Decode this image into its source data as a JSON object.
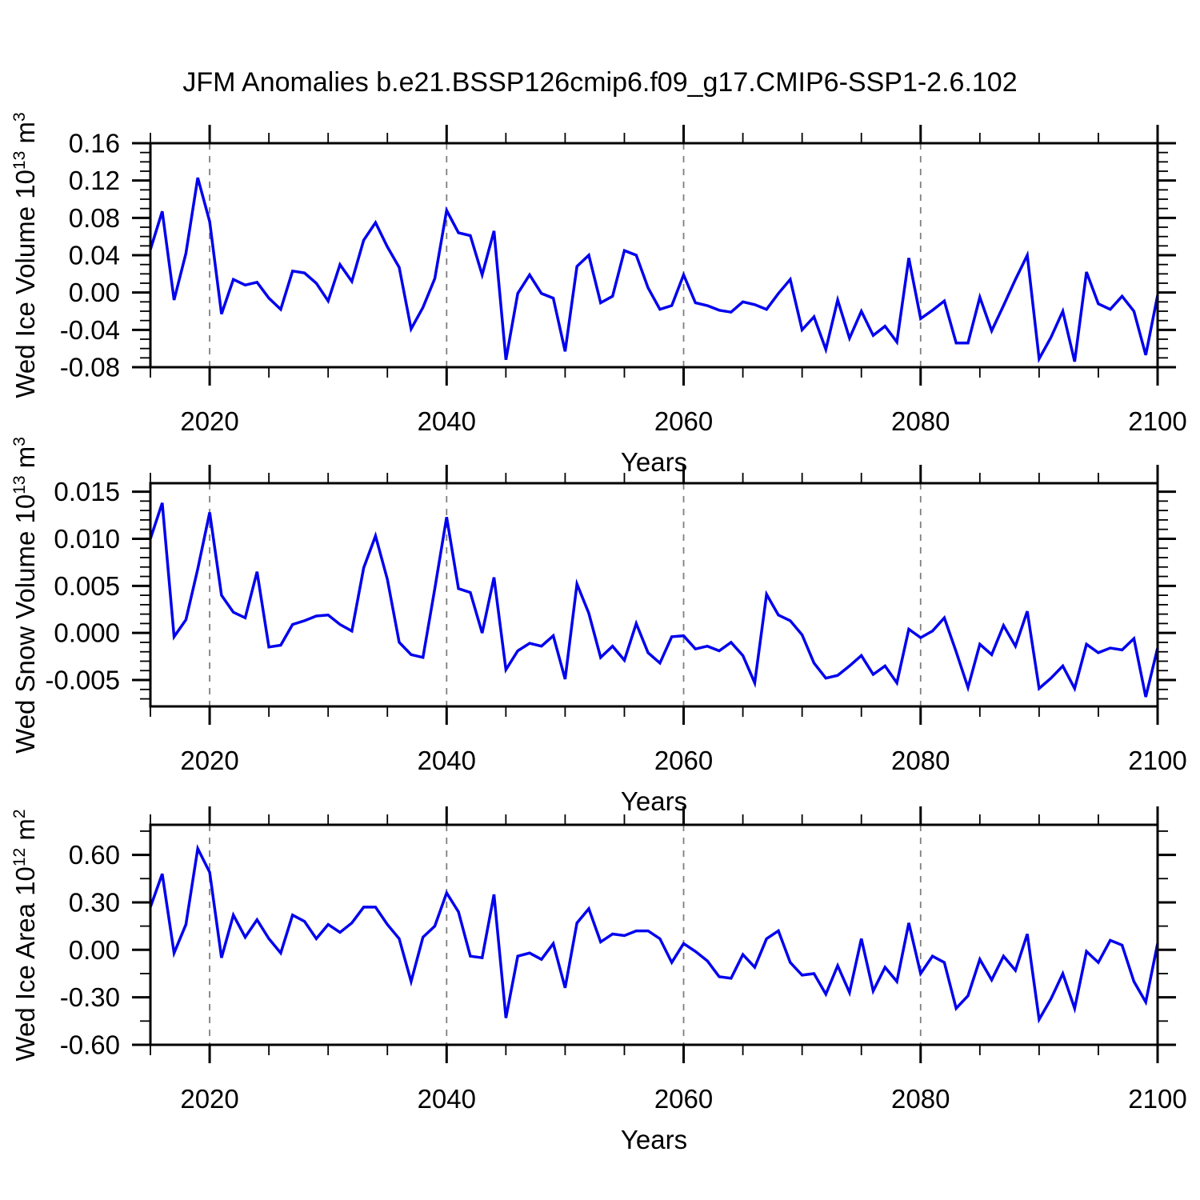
{
  "title": "JFM Anomalies b.e21.BSSP126cmip6.f09_g17.CMIP6-SSP1-2.6.102",
  "colors": {
    "line": "#0000EE",
    "grid": "#7F7F7F",
    "axis": "#000000",
    "background": "#FFFFFF"
  },
  "x_axis": {
    "label": "Years",
    "range": [
      2015,
      2100
    ],
    "tick_values": [
      2020,
      2040,
      2060,
      2080,
      2100
    ],
    "tick_labels": [
      "2020",
      "2040",
      "2060",
      "2080",
      "2100"
    ],
    "minor_step": 5,
    "grid_years": [
      2020,
      2040,
      2060,
      2080
    ]
  },
  "chart_data": [
    {
      "type": "line",
      "name": "wed-ice-volume",
      "ylabel": "Wed Ice Volume 10^{13} m^{3}",
      "xlabel": "Years",
      "ylim": [
        -0.08,
        0.16
      ],
      "ytick_values": [
        0.16,
        0.12,
        0.08,
        0.04,
        0.0,
        -0.04,
        -0.08
      ],
      "ytick_labels": [
        "0.16",
        "0.12",
        "0.08",
        "0.04",
        "0.00",
        "-0.04",
        "-0.08"
      ],
      "yminor_step": 0.01,
      "x_start": 2015,
      "x_end": 2100,
      "values": [
        0.046,
        0.087,
        -0.008,
        0.042,
        0.123,
        0.076,
        -0.023,
        0.014,
        0.008,
        0.011,
        -0.006,
        -0.018,
        0.023,
        0.021,
        0.01,
        -0.009,
        0.03,
        0.012,
        0.056,
        0.075,
        0.049,
        0.027,
        -0.039,
        -0.016,
        0.015,
        0.088,
        0.064,
        0.061,
        0.019,
        0.066,
        -0.072,
        -0.001,
        0.019,
        -0.001,
        -0.006,
        -0.063,
        0.028,
        0.04,
        -0.011,
        -0.004,
        0.045,
        0.04,
        0.005,
        -0.018,
        -0.014,
        0.019,
        -0.011,
        -0.014,
        -0.019,
        -0.021,
        -0.01,
        -0.013,
        -0.018,
        -0.001,
        0.014,
        -0.04,
        -0.026,
        -0.061,
        -0.008,
        -0.049,
        -0.02,
        -0.046,
        -0.036,
        -0.053,
        0.037,
        -0.028,
        -0.019,
        -0.009,
        -0.054,
        -0.054,
        -0.005,
        -0.041,
        -0.014,
        0.014,
        0.04,
        -0.071,
        -0.048,
        -0.02,
        -0.074,
        0.022,
        -0.012,
        -0.018,
        -0.004,
        -0.02,
        -0.067,
        -0.003
      ]
    },
    {
      "type": "line",
      "name": "wed-snow-volume",
      "ylabel": "Wed Snow Volume 10^{13} m^{3}",
      "xlabel": "Years",
      "ylim": [
        -0.0078,
        0.0159
      ],
      "ytick_values": [
        0.015,
        0.01,
        0.005,
        0.0,
        -0.005
      ],
      "ytick_labels": [
        "0.015",
        "0.010",
        "0.005",
        "0.000",
        "-0.005"
      ],
      "yminor_step": 0.001,
      "x_start": 2015,
      "x_end": 2100,
      "values": [
        0.01,
        0.0138,
        -0.0004,
        0.0014,
        0.0068,
        0.0128,
        0.004,
        0.0022,
        0.0016,
        0.0065,
        -0.0015,
        -0.0013,
        0.0009,
        0.0013,
        0.0018,
        0.0019,
        0.0009,
        0.0002,
        0.0069,
        0.0103,
        0.0057,
        -0.001,
        -0.0023,
        -0.0026,
        0.0047,
        0.0123,
        0.0047,
        0.0043,
        0.0,
        0.0059,
        -0.0039,
        -0.0019,
        -0.0011,
        -0.0014,
        -0.0003,
        -0.0049,
        0.0052,
        0.0021,
        -0.0026,
        -0.0014,
        -0.0029,
        0.001,
        -0.0021,
        -0.0032,
        -0.0004,
        -0.0003,
        -0.0017,
        -0.0014,
        -0.0019,
        -0.001,
        -0.0024,
        -0.0053,
        0.0041,
        0.0019,
        0.0013,
        -0.0002,
        -0.0032,
        -0.0048,
        -0.0045,
        -0.0035,
        -0.0024,
        -0.0044,
        -0.0035,
        -0.0053,
        0.0004,
        -0.0005,
        0.0002,
        0.0016,
        -0.002,
        -0.0058,
        -0.0012,
        -0.0023,
        0.0008,
        -0.0014,
        0.0023,
        -0.0059,
        -0.0048,
        -0.0035,
        -0.0059,
        -0.0012,
        -0.0021,
        -0.0016,
        -0.0018,
        -0.0006,
        -0.0068,
        -0.0016
      ]
    },
    {
      "type": "line",
      "name": "wed-ice-area",
      "ylabel": "Wed Ice Area 10^{12} m^{2}",
      "xlabel": "Years",
      "ylim": [
        -0.6,
        0.79
      ],
      "ytick_values": [
        0.6,
        0.3,
        0.0,
        -0.3,
        -0.6
      ],
      "ytick_labels": [
        "0.60",
        "0.30",
        "0.00",
        "-0.30",
        "-0.60"
      ],
      "yminor_step": 0.15,
      "x_start": 2015,
      "x_end": 2100,
      "values": [
        0.27,
        0.48,
        -0.02,
        0.16,
        0.64,
        0.49,
        -0.05,
        0.22,
        0.08,
        0.19,
        0.07,
        -0.02,
        0.22,
        0.18,
        0.07,
        0.16,
        0.11,
        0.17,
        0.27,
        0.27,
        0.16,
        0.07,
        -0.2,
        0.08,
        0.15,
        0.36,
        0.24,
        -0.04,
        -0.05,
        0.35,
        -0.43,
        -0.04,
        -0.02,
        -0.06,
        0.04,
        -0.24,
        0.17,
        0.26,
        0.05,
        0.1,
        0.09,
        0.12,
        0.12,
        0.07,
        -0.08,
        0.04,
        -0.01,
        -0.07,
        -0.17,
        -0.18,
        -0.03,
        -0.11,
        0.07,
        0.12,
        -0.08,
        -0.16,
        -0.15,
        -0.28,
        -0.1,
        -0.27,
        0.07,
        -0.26,
        -0.11,
        -0.2,
        0.17,
        -0.15,
        -0.04,
        -0.08,
        -0.37,
        -0.29,
        -0.06,
        -0.19,
        -0.04,
        -0.13,
        0.1,
        -0.44,
        -0.31,
        -0.15,
        -0.37,
        -0.01,
        -0.08,
        0.06,
        0.03,
        -0.2,
        -0.33,
        0.04
      ]
    }
  ]
}
